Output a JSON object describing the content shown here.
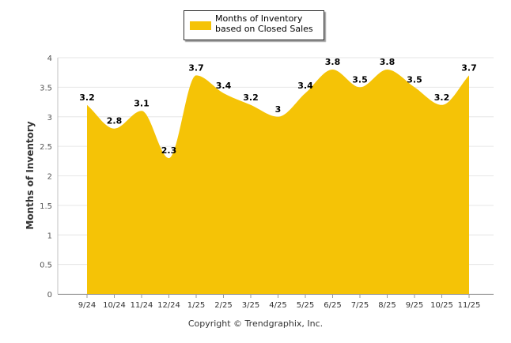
{
  "chart_data": {
    "type": "area",
    "categories": [
      "9/24",
      "10/24",
      "11/24",
      "12/24",
      "1/25",
      "2/25",
      "3/25",
      "4/25",
      "5/25",
      "6/25",
      "7/25",
      "8/25",
      "9/25",
      "10/25",
      "11/25"
    ],
    "series": [
      {
        "name": "Months of Inventory based on Closed Sales",
        "values": [
          3.2,
          2.8,
          3.1,
          2.3,
          3.7,
          3.4,
          3.2,
          3,
          3.4,
          3.8,
          3.5,
          3.8,
          3.5,
          3.2,
          3.7
        ],
        "color": "#F5C306"
      }
    ],
    "ylabel": "Months of Inventory",
    "xlabel": "",
    "ylim": [
      0,
      4
    ],
    "yticks": [
      "0",
      "0.5",
      "1",
      "1.5",
      "2",
      "2.5",
      "3",
      "3.5",
      "4"
    ],
    "grid": true,
    "legend_position": "top-center"
  },
  "legend": {
    "label": "Months of Inventory based on Closed Sales"
  },
  "copyright": "Copyright © Trendgraphix, Inc."
}
